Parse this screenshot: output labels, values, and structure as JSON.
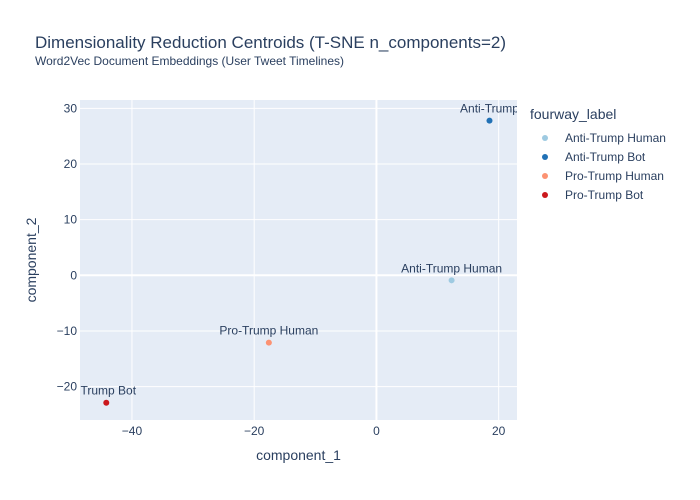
{
  "chart_data": {
    "type": "scatter",
    "title": "Dimensionality Reduction Centroids (T-SNE n_components=2)",
    "subtitle": "Word2Vec Document Embeddings (User Tweet Timelines)",
    "xlabel": "component_1",
    "ylabel": "component_2",
    "xlim": [
      -48.5,
      23
    ],
    "ylim": [
      -26,
      31.5
    ],
    "xticks": [
      -40,
      -20,
      0,
      20
    ],
    "yticks": [
      -20,
      -10,
      0,
      10,
      20,
      30
    ],
    "xtick_labels": [
      "−40",
      "−20",
      "0",
      "20"
    ],
    "ytick_labels": [
      "−20",
      "−10",
      "0",
      "10",
      "20",
      "30"
    ],
    "grid": true,
    "legend_title": "fourway_label",
    "legend_position": "right",
    "points": [
      {
        "name": "Anti-Trump Human",
        "x": 12.3,
        "y": -0.9,
        "color": "#9ecae1",
        "label": "Anti-Trump Human"
      },
      {
        "name": "Anti-Trump Bot",
        "x": 18.5,
        "y": 27.8,
        "color": "#2171b5",
        "label": "Anti-Trump"
      },
      {
        "name": "Pro-Trump Human",
        "x": -17.6,
        "y": -12.1,
        "color": "#fc9272",
        "label": "Pro-Trump Human"
      },
      {
        "name": "Pro-Trump Bot",
        "x": -44.2,
        "y": -22.9,
        "color": "#cb181d",
        "label": "-Trump Bot"
      }
    ]
  }
}
